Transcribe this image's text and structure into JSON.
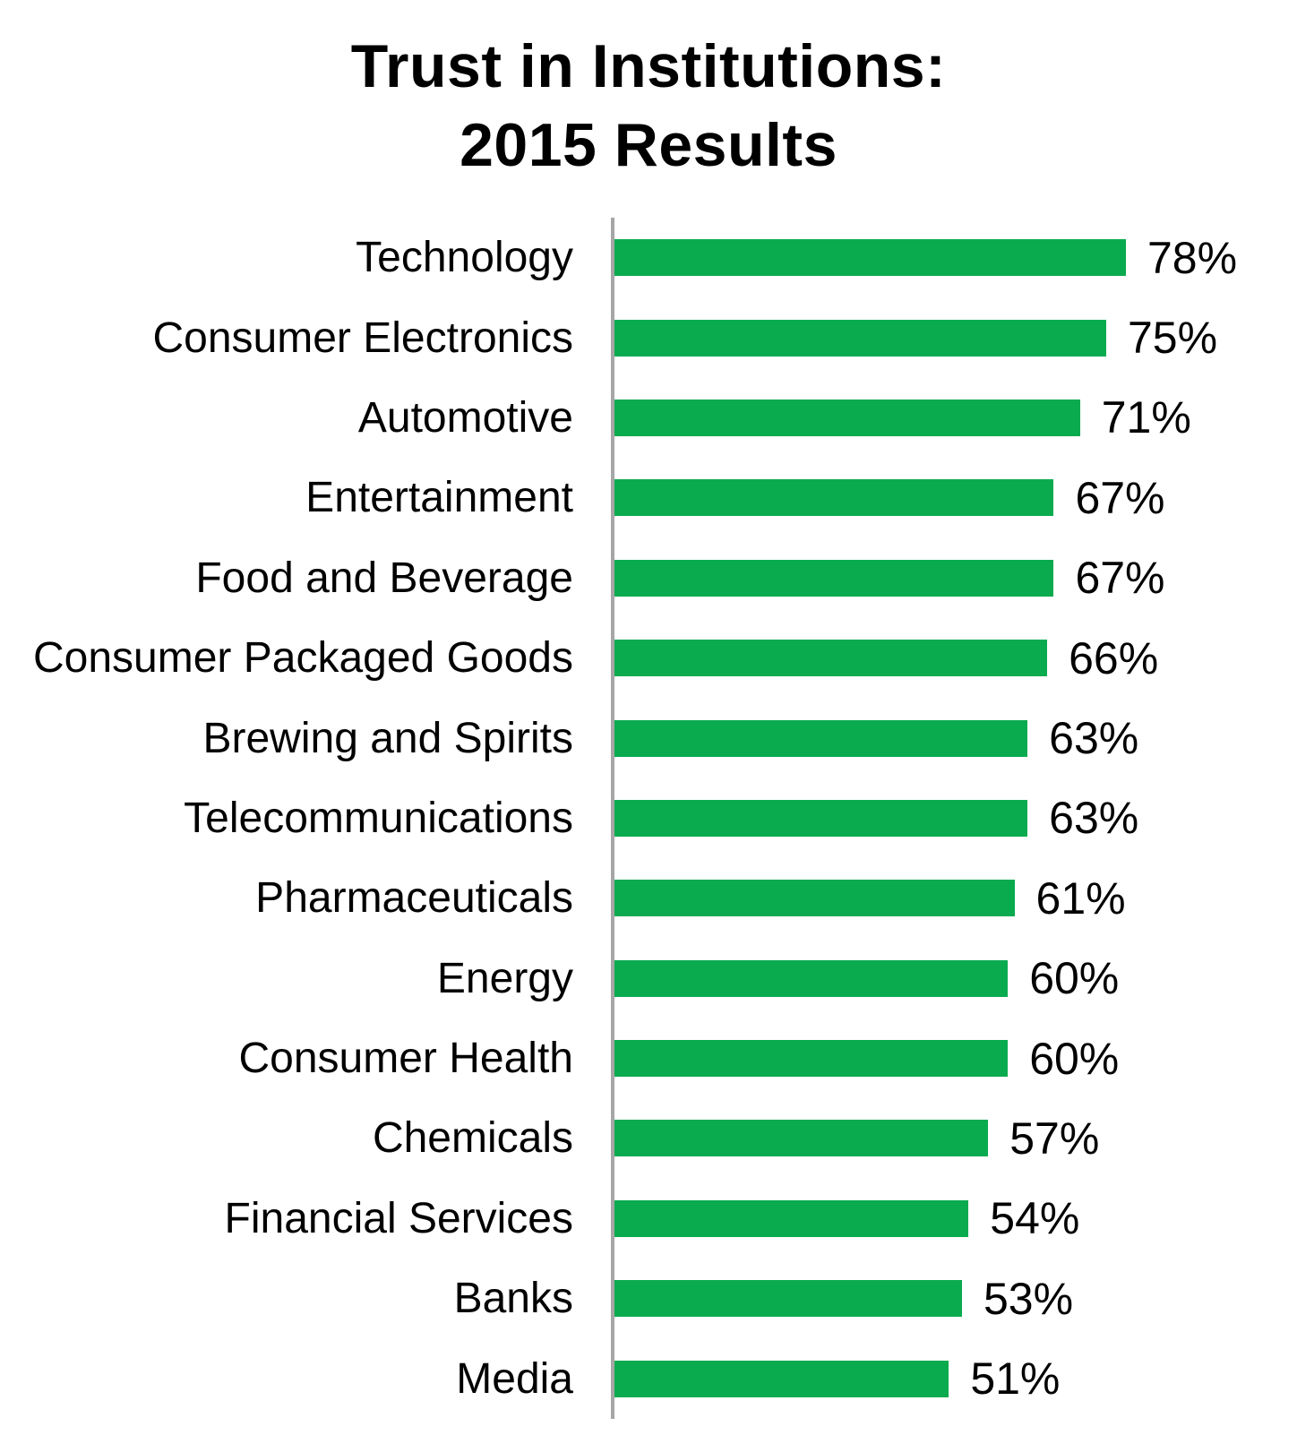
{
  "chart": {
    "title_line1": "Trust in Institutions:",
    "title_line2": "2015 Results"
  },
  "chart_data": {
    "type": "bar",
    "orientation": "horizontal",
    "title": "Trust in Institutions: 2015 Results",
    "categories": [
      "Technology",
      "Consumer Electronics",
      "Automotive",
      "Entertainment",
      "Food and Beverage",
      "Consumer Packaged Goods",
      "Brewing and Spirits",
      "Telecommunications",
      "Pharmaceuticals",
      "Energy",
      "Consumer Health",
      "Chemicals",
      "Financial Services",
      "Banks",
      "Media"
    ],
    "values": [
      78,
      75,
      71,
      67,
      67,
      66,
      63,
      63,
      61,
      60,
      60,
      57,
      54,
      53,
      51
    ],
    "value_labels": [
      "78%",
      "75%",
      "71%",
      "67%",
      "67%",
      "66%",
      "63%",
      "63%",
      "61%",
      "60%",
      "60%",
      "57%",
      "54%",
      "53%",
      "51%"
    ],
    "xlabel": "",
    "ylabel": "",
    "xlim": [
      0,
      100
    ],
    "grid": false,
    "legend": false,
    "bar_color": "#0AAB4F",
    "axis_line_color": "#A6A6A6",
    "text_color": "#000000"
  }
}
